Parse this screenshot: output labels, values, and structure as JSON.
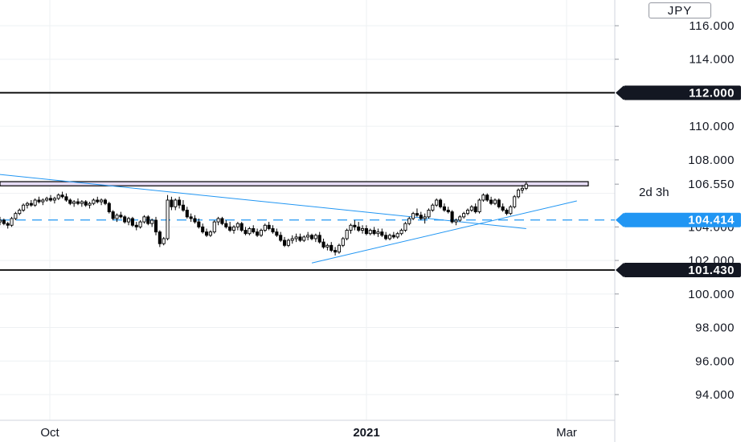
{
  "currency": "JPY",
  "chart_data": {
    "type": "candlestick",
    "y_ticks": [
      "116.000",
      "114.000",
      "110.000",
      "108.000",
      "106.550",
      "104.000",
      "102.000",
      "100.000",
      "98.000",
      "96.000",
      "94.000"
    ],
    "y_tick_values": [
      116,
      114,
      110,
      108,
      106.55,
      104,
      102,
      100,
      98,
      96,
      94
    ],
    "x_ticks": [
      {
        "label": "Oct",
        "bold": false
      },
      {
        "label": "2021",
        "bold": true
      },
      {
        "label": "Mar",
        "bold": false
      }
    ],
    "ylim": [
      92.2,
      117.3
    ],
    "grid": true,
    "horizontal_levels": [
      {
        "name": "resistance",
        "value": 112.0,
        "label": "112.000",
        "color": "#000000",
        "style": "solid"
      },
      {
        "name": "support",
        "value": 101.43,
        "label": "101.430",
        "color": "#000000",
        "style": "solid"
      },
      {
        "name": "dashed-level",
        "value": 104.414,
        "label": "104.414",
        "color": "#2196f3",
        "style": "dashed"
      }
    ],
    "current_price": {
      "value": 106.55,
      "label": "106.550",
      "countdown": "2d 3h"
    },
    "resistance_zone": {
      "low": 106.45,
      "high": 106.7,
      "color": "#e6dcf5"
    },
    "trendlines": [
      {
        "name": "descending-trendline",
        "from": {
          "bar": -3,
          "price": 107.2
        },
        "to": {
          "bar": 135,
          "price": 103.9
        },
        "color": "#2196f3"
      },
      {
        "name": "ascending-trendline",
        "from": {
          "bar": 80,
          "price": 101.85
        },
        "to": {
          "bar": 148,
          "price": 105.55
        },
        "color": "#2196f3"
      }
    ],
    "candles": [
      [
        104.3,
        104.6,
        104.1,
        104.4
      ],
      [
        104.4,
        104.5,
        104.1,
        104.2
      ],
      [
        104.2,
        104.3,
        103.9,
        104.1
      ],
      [
        104.1,
        104.6,
        104.0,
        104.5
      ],
      [
        104.5,
        104.9,
        104.4,
        104.8
      ],
      [
        104.8,
        105.1,
        104.7,
        105.0
      ],
      [
        105.0,
        105.4,
        104.9,
        105.3
      ],
      [
        105.3,
        105.5,
        105.1,
        105.4
      ],
      [
        105.4,
        105.6,
        105.2,
        105.3
      ],
      [
        105.3,
        105.7,
        105.2,
        105.6
      ],
      [
        105.6,
        105.8,
        105.4,
        105.5
      ],
      [
        105.5,
        105.7,
        105.3,
        105.6
      ],
      [
        105.6,
        105.8,
        105.5,
        105.7
      ],
      [
        105.7,
        105.9,
        105.5,
        105.6
      ],
      [
        105.6,
        105.8,
        105.4,
        105.7
      ],
      [
        105.7,
        106.0,
        105.6,
        105.9
      ],
      [
        105.9,
        106.1,
        105.7,
        105.8
      ],
      [
        105.8,
        106.0,
        105.5,
        105.6
      ],
      [
        105.6,
        105.7,
        105.3,
        105.4
      ],
      [
        105.4,
        105.6,
        105.2,
        105.5
      ],
      [
        105.5,
        105.7,
        105.3,
        105.4
      ],
      [
        105.4,
        105.6,
        105.2,
        105.5
      ],
      [
        105.5,
        105.6,
        105.2,
        105.3
      ],
      [
        105.3,
        105.5,
        105.1,
        105.4
      ],
      [
        105.4,
        105.7,
        105.3,
        105.6
      ],
      [
        105.6,
        105.8,
        105.4,
        105.5
      ],
      [
        105.5,
        105.7,
        105.3,
        105.6
      ],
      [
        105.6,
        105.7,
        105.3,
        105.4
      ],
      [
        105.4,
        105.5,
        104.8,
        104.9
      ],
      [
        104.9,
        105.0,
        104.4,
        104.5
      ],
      [
        104.5,
        104.8,
        104.3,
        104.7
      ],
      [
        104.7,
        104.9,
        104.5,
        104.6
      ],
      [
        104.6,
        104.7,
        104.2,
        104.3
      ],
      [
        104.3,
        104.6,
        104.1,
        104.5
      ],
      [
        104.5,
        104.6,
        104.0,
        104.1
      ],
      [
        104.1,
        104.3,
        103.8,
        104.0
      ],
      [
        104.0,
        104.4,
        103.9,
        104.3
      ],
      [
        104.3,
        104.7,
        104.2,
        104.6
      ],
      [
        104.6,
        104.7,
        104.1,
        104.2
      ],
      [
        104.2,
        104.5,
        104.0,
        104.4
      ],
      [
        104.4,
        104.6,
        103.5,
        103.7
      ],
      [
        103.7,
        103.8,
        102.8,
        103.0
      ],
      [
        103.0,
        103.4,
        102.9,
        103.3
      ],
      [
        103.3,
        105.9,
        103.2,
        105.6
      ],
      [
        105.6,
        105.8,
        105.0,
        105.2
      ],
      [
        105.2,
        105.7,
        105.0,
        105.6
      ],
      [
        105.6,
        105.8,
        105.1,
        105.3
      ],
      [
        105.3,
        105.6,
        104.9,
        105.0
      ],
      [
        105.0,
        105.2,
        104.5,
        104.6
      ],
      [
        104.6,
        104.8,
        104.3,
        104.5
      ],
      [
        104.5,
        104.7,
        104.2,
        104.3
      ],
      [
        104.3,
        104.5,
        103.9,
        104.0
      ],
      [
        104.0,
        104.2,
        103.6,
        103.7
      ],
      [
        103.7,
        103.9,
        103.4,
        103.5
      ],
      [
        103.5,
        103.8,
        103.4,
        103.7
      ],
      [
        103.7,
        104.4,
        103.6,
        104.3
      ],
      [
        104.3,
        104.6,
        104.1,
        104.5
      ],
      [
        104.5,
        104.6,
        104.1,
        104.2
      ],
      [
        104.2,
        104.4,
        103.9,
        104.0
      ],
      [
        104.0,
        104.3,
        103.7,
        103.8
      ],
      [
        103.8,
        104.1,
        103.6,
        104.0
      ],
      [
        104.0,
        104.3,
        103.8,
        104.2
      ],
      [
        104.2,
        104.3,
        103.7,
        103.8
      ],
      [
        103.8,
        104.0,
        103.5,
        103.6
      ],
      [
        103.6,
        104.0,
        103.5,
        103.9
      ],
      [
        103.9,
        104.1,
        103.6,
        103.7
      ],
      [
        103.7,
        103.9,
        103.4,
        103.5
      ],
      [
        103.5,
        103.9,
        103.4,
        103.8
      ],
      [
        103.8,
        104.2,
        103.7,
        104.1
      ],
      [
        104.1,
        104.3,
        103.8,
        103.9
      ],
      [
        103.9,
        104.1,
        103.6,
        103.7
      ],
      [
        103.7,
        103.9,
        103.4,
        103.5
      ],
      [
        103.5,
        103.7,
        103.1,
        103.2
      ],
      [
        103.2,
        103.4,
        102.8,
        102.9
      ],
      [
        102.9,
        103.3,
        102.8,
        103.2
      ],
      [
        103.2,
        103.5,
        103.0,
        103.3
      ],
      [
        103.3,
        103.6,
        103.1,
        103.4
      ],
      [
        103.4,
        103.6,
        103.1,
        103.2
      ],
      [
        103.2,
        103.5,
        103.1,
        103.4
      ],
      [
        103.4,
        103.7,
        103.2,
        103.5
      ],
      [
        103.5,
        103.6,
        103.2,
        103.3
      ],
      [
        103.3,
        103.6,
        103.1,
        103.5
      ],
      [
        103.5,
        103.7,
        103.0,
        103.1
      ],
      [
        103.1,
        103.3,
        102.7,
        102.8
      ],
      [
        102.8,
        103.0,
        102.6,
        102.9
      ],
      [
        102.9,
        103.1,
        102.5,
        102.6
      ],
      [
        102.6,
        102.8,
        102.3,
        102.5
      ],
      [
        102.5,
        103.0,
        102.4,
        102.9
      ],
      [
        102.9,
        103.4,
        102.8,
        103.3
      ],
      [
        103.3,
        103.9,
        103.2,
        103.8
      ],
      [
        103.8,
        104.2,
        103.6,
        104.1
      ],
      [
        104.1,
        104.4,
        103.8,
        104.0
      ],
      [
        104.0,
        104.3,
        103.7,
        103.8
      ],
      [
        103.8,
        104.1,
        103.6,
        103.9
      ],
      [
        103.9,
        104.1,
        103.5,
        103.6
      ],
      [
        103.6,
        103.9,
        103.5,
        103.8
      ],
      [
        103.8,
        104.0,
        103.5,
        103.6
      ],
      [
        103.6,
        103.9,
        103.4,
        103.7
      ],
      [
        103.7,
        103.9,
        103.4,
        103.5
      ],
      [
        103.5,
        103.7,
        103.2,
        103.3
      ],
      [
        103.3,
        103.6,
        103.2,
        103.5
      ],
      [
        103.5,
        103.7,
        103.3,
        103.4
      ],
      [
        103.4,
        103.7,
        103.3,
        103.6
      ],
      [
        103.6,
        103.9,
        103.5,
        103.8
      ],
      [
        103.8,
        104.3,
        103.7,
        104.2
      ],
      [
        104.2,
        104.6,
        104.1,
        104.5
      ],
      [
        104.5,
        104.9,
        104.4,
        104.8
      ],
      [
        104.8,
        105.1,
        104.6,
        104.7
      ],
      [
        104.7,
        104.9,
        104.4,
        104.5
      ],
      [
        104.5,
        104.8,
        104.2,
        104.6
      ],
      [
        104.6,
        105.1,
        104.5,
        105.0
      ],
      [
        105.0,
        105.4,
        104.9,
        105.3
      ],
      [
        105.3,
        105.7,
        105.2,
        105.6
      ],
      [
        105.6,
        105.7,
        105.1,
        105.2
      ],
      [
        105.2,
        105.4,
        104.9,
        105.0
      ],
      [
        105.0,
        105.2,
        104.8,
        104.9
      ],
      [
        104.9,
        105.0,
        104.2,
        104.3
      ],
      [
        104.3,
        104.5,
        104.1,
        104.4
      ],
      [
        104.4,
        104.7,
        104.3,
        104.6
      ],
      [
        104.6,
        104.9,
        104.5,
        104.8
      ],
      [
        104.8,
        105.1,
        104.7,
        105.0
      ],
      [
        105.0,
        105.3,
        104.9,
        105.2
      ],
      [
        105.2,
        105.4,
        104.8,
        104.9
      ],
      [
        104.9,
        105.7,
        104.8,
        105.6
      ],
      [
        105.6,
        106.0,
        105.5,
        105.9
      ],
      [
        105.9,
        106.0,
        105.5,
        105.6
      ],
      [
        105.6,
        105.8,
        105.3,
        105.4
      ],
      [
        105.4,
        105.7,
        105.3,
        105.6
      ],
      [
        105.6,
        105.7,
        105.1,
        105.2
      ],
      [
        105.2,
        105.4,
        104.9,
        105.0
      ],
      [
        105.0,
        105.1,
        104.7,
        104.8
      ],
      [
        104.8,
        105.3,
        104.7,
        105.2
      ],
      [
        105.2,
        105.9,
        105.1,
        105.8
      ],
      [
        105.8,
        106.3,
        105.7,
        106.2
      ],
      [
        106.2,
        106.5,
        106.0,
        106.3
      ],
      [
        106.3,
        106.7,
        106.2,
        106.55
      ]
    ]
  }
}
